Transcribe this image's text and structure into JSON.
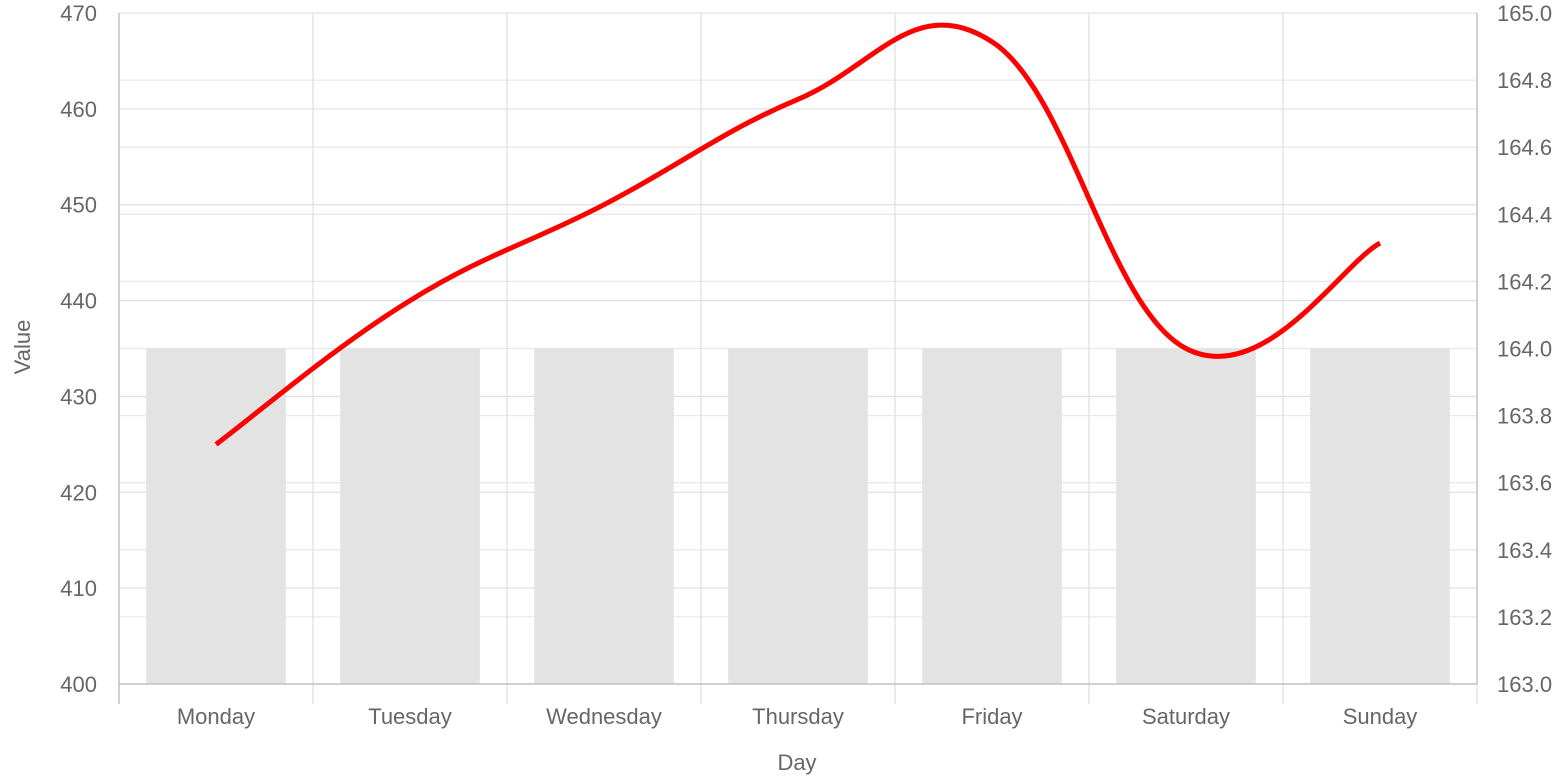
{
  "chart_data": {
    "type": "bar",
    "categories": [
      "Monday",
      "Tuesday",
      "Wednesday",
      "Thursday",
      "Friday",
      "Saturday",
      "Sunday"
    ],
    "xlabel": "Day",
    "ylabel": "Value",
    "y_left": {
      "ylim": [
        400,
        470
      ],
      "ticks": [
        "400",
        "410",
        "420",
        "430",
        "440",
        "450",
        "460",
        "470"
      ]
    },
    "y_right": {
      "ylim": [
        163.0,
        165.0
      ],
      "ticks": [
        "163.0",
        "163.2",
        "163.4",
        "163.6",
        "163.8",
        "164.0",
        "164.2",
        "164.4",
        "164.6",
        "164.8",
        "165.0"
      ]
    },
    "series": [
      {
        "type": "bar",
        "axis": "right",
        "color": "#e3e3e3",
        "values": [
          164.0,
          164.0,
          164.0,
          164.0,
          164.0,
          164.0,
          164.0
        ]
      },
      {
        "type": "line",
        "axis": "left",
        "color": "#ff0000",
        "smooth": true,
        "values": [
          425,
          440,
          450,
          461,
          467,
          435,
          446
        ]
      }
    ],
    "grid": true,
    "legend": "none"
  }
}
